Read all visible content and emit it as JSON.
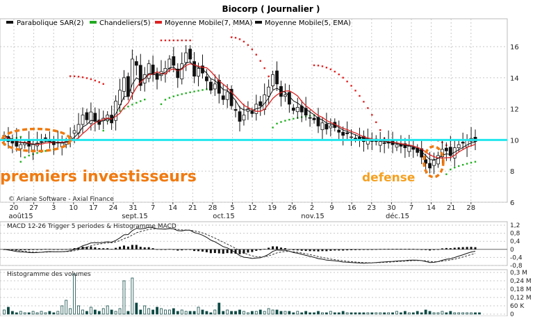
{
  "chart_title": "Biocorp  ( Journalier )",
  "legend": [
    {
      "label": "Parabolique SAR(2)",
      "color": "#111111"
    },
    {
      "label": "Chandeliers(5)",
      "color": "#22aa22"
    },
    {
      "label": "Moyenne Mobile(7, MMA)",
      "color": "#dd2222"
    },
    {
      "label": "Moyenne Mobile(5, EMA)",
      "color": "#111111"
    }
  ],
  "credit": "© Ariane Software - Axial Finance",
  "annotations": {
    "left": "premiers investisseurs",
    "right": "defense"
  },
  "colors": {
    "sar_red": "#e02020",
    "sar_green": "#20b020",
    "hline": "#22e6ee",
    "annot": "#f07a10",
    "ema": "#111111",
    "mma": "#dd2222",
    "grid": "#c8c8c8"
  },
  "chart_data": [
    {
      "type": "candlestick",
      "name": "price",
      "ylim": [
        6,
        17.7
      ],
      "yticks": [
        6,
        8,
        10,
        12,
        14,
        16
      ],
      "hline": 10,
      "x_ticks": [
        "20",
        "27",
        "3",
        "10",
        "17",
        "24",
        "31",
        "7",
        "14",
        "21",
        "28",
        "5",
        "12",
        "19",
        "26",
        "2",
        "9",
        "16",
        "23",
        "30",
        "7",
        "14",
        "21",
        "28"
      ],
      "month_labels": [
        "août15",
        "sept.15",
        "oct.15",
        "nov.15",
        "déc.15"
      ],
      "close": [
        10.3,
        9.9,
        9.8,
        9.6,
        9.7,
        9.8,
        9.6,
        9.7,
        9.8,
        9.9,
        10.1,
        9.9,
        9.7,
        9.8,
        9.8,
        9.9,
        10.2,
        10.6,
        11.0,
        11.6,
        11.3,
        11.8,
        11.2,
        11.0,
        11.4,
        11.6,
        11.1,
        12.5,
        13.2,
        14.0,
        12.8,
        15.2,
        14.8,
        13.5,
        14.2,
        14.9,
        14.2,
        13.9,
        14.4,
        14.6,
        15.2,
        14.8,
        14.0,
        14.9,
        15.6,
        15.2,
        14.1,
        14.6,
        14.3,
        13.8,
        13.2,
        13.6,
        13.0,
        12.6,
        13.1,
        12.2,
        11.9,
        11.2,
        11.6,
        12.0,
        11.7,
        12.3,
        12.2,
        12.9,
        13.4,
        14.2,
        13.6,
        12.8,
        12.9,
        12.3,
        11.9,
        12.1,
        11.8,
        11.6,
        11.4,
        11.3,
        10.9,
        11.1,
        10.7,
        10.9,
        10.8,
        10.5,
        10.3,
        10.4,
        10.2,
        10.1,
        10.0,
        9.9,
        10.0,
        9.9,
        9.9,
        9.9,
        9.8,
        9.8,
        9.7,
        9.7,
        9.6,
        9.5,
        9.6,
        9.4,
        9.2,
        8.9,
        8.5,
        8.2,
        8.7,
        9.0,
        9.4,
        9.3,
        9.0,
        9.5,
        9.7,
        9.8,
        10.0,
        10.1,
        9.9
      ],
      "series": [
        {
          "name": "Moyenne Mobile(7, MMA)"
        },
        {
          "name": "Moyenne Mobile(5, EMA)"
        }
      ]
    },
    {
      "type": "line",
      "name": "MACD 12-26  Trigger 5 periodes & Histogramme MACD",
      "ylim": [
        -0.8,
        1.2
      ],
      "yticks": [
        1.2,
        0.8,
        0.4,
        0,
        -0.4,
        -0.8
      ],
      "ytick_labels": [
        "1,2",
        "0,8",
        "0,4",
        "0",
        "-0,4",
        "-0,8"
      ],
      "series": [
        {
          "name": "MACD"
        },
        {
          "name": "Trigger"
        }
      ]
    },
    {
      "type": "bar",
      "name": "Histogramme des volumes",
      "ylim": [
        0,
        0.3
      ],
      "ytick_labels": [
        "0,3 M",
        "0,24 M",
        "0,18 M",
        "0,12 M",
        "60 K",
        "0"
      ],
      "values": [
        0.03,
        0.05,
        0.02,
        0.01,
        0.02,
        0.01,
        0.01,
        0.02,
        0.01,
        0.02,
        0.01,
        0.02,
        0.01,
        0.02,
        0.06,
        0.1,
        0.04,
        0.29,
        0.06,
        0.03,
        0.02,
        0.05,
        0.03,
        0.02,
        0.04,
        0.06,
        0.03,
        0.02,
        0.04,
        0.24,
        0.02,
        0.26,
        0.08,
        0.03,
        0.06,
        0.04,
        0.03,
        0.05,
        0.04,
        0.03,
        0.03,
        0.04,
        0.02,
        0.03,
        0.02,
        0.02,
        0.02,
        0.05,
        0.03,
        0.02,
        0.01,
        0.03,
        0.08,
        0.02,
        0.03,
        0.02,
        0.02,
        0.03,
        0.02,
        0.01,
        0.02,
        0.02,
        0.03,
        0.02,
        0.04,
        0.03,
        0.03,
        0.02,
        0.02,
        0.02,
        0.01,
        0.02,
        0.01,
        0.02,
        0.01,
        0.01,
        0.02,
        0.01,
        0.01,
        0.02,
        0.01,
        0.01,
        0.02,
        0.01,
        0.01,
        0.01,
        0.01,
        0.01,
        0.01,
        0.01,
        0.01,
        0.01,
        0.01,
        0.01,
        0.01,
        0.02,
        0.01,
        0.02,
        0.01,
        0.01,
        0.02,
        0.01,
        0.03,
        0.02,
        0.01,
        0.01,
        0.02,
        0.01,
        0.02,
        0.01,
        0.01,
        0.01,
        0.01,
        0.01,
        0.01,
        0.01
      ]
    }
  ]
}
